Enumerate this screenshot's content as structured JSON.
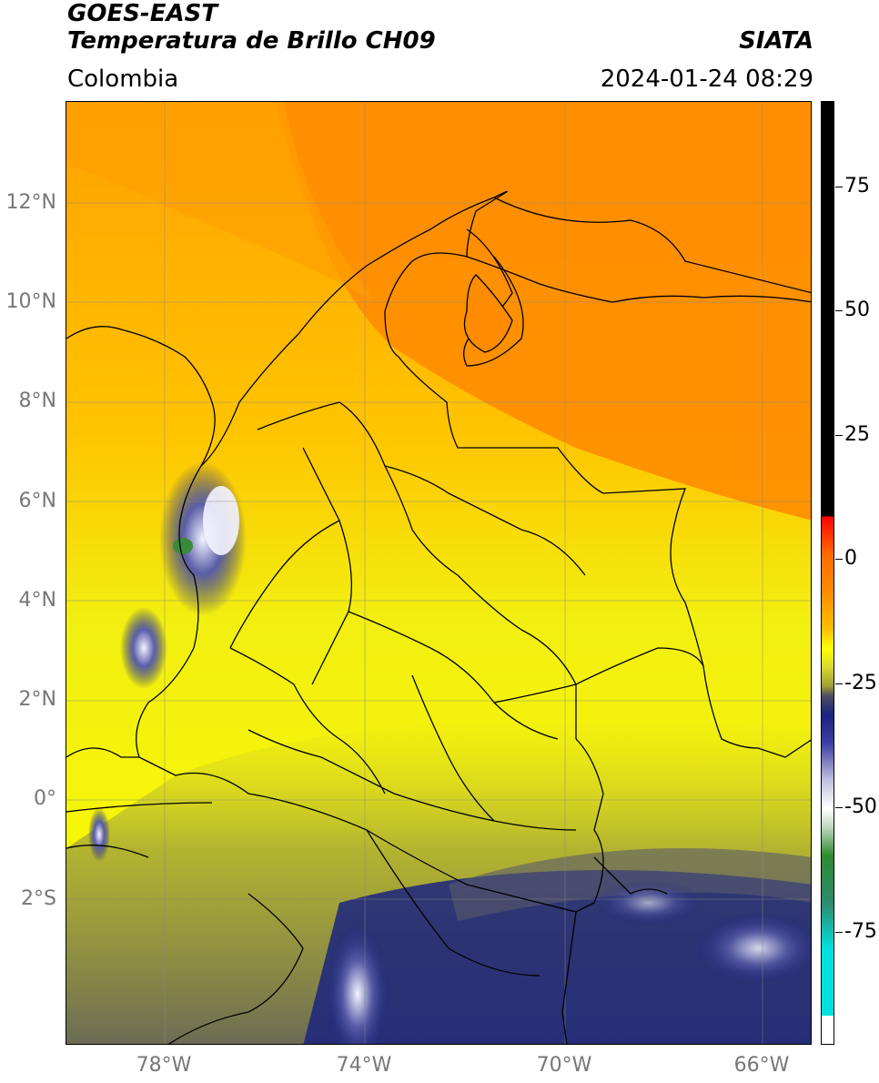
{
  "header": {
    "title_line1": "GOES-EAST",
    "title_line2": "Temperatura de Brillo CH09",
    "brand": "SIATA",
    "region": "Colombia",
    "datetime": "2024-01-24 08:29"
  },
  "map": {
    "lat_labels": [
      "12°N",
      "10°N",
      "8°N",
      "6°N",
      "4°N",
      "2°N",
      "0°",
      "2°S"
    ],
    "lon_labels": [
      "78°W",
      "74°W",
      "70°W",
      "66°W"
    ],
    "colors": {
      "warm_orange": "#ff8c00",
      "orange_yellow": "#ffb000",
      "yellow": "#ffff00",
      "olive": "#b8b82a",
      "dark_olive": "#6e6e4a",
      "navy": "#1a237e",
      "white_cloud": "#e8e8f8",
      "green": "#3a8a3a",
      "border": "#000000"
    }
  },
  "colorbar": {
    "labels": [
      "75",
      "50",
      "25",
      "0",
      "-25",
      "-50",
      "-75"
    ],
    "colors": [
      "#000000",
      "#ff0000",
      "#ff8c00",
      "#ffff00",
      "#808020",
      "#1a237e",
      "#ffffff",
      "#2e8b2e",
      "#00e0e0"
    ]
  }
}
